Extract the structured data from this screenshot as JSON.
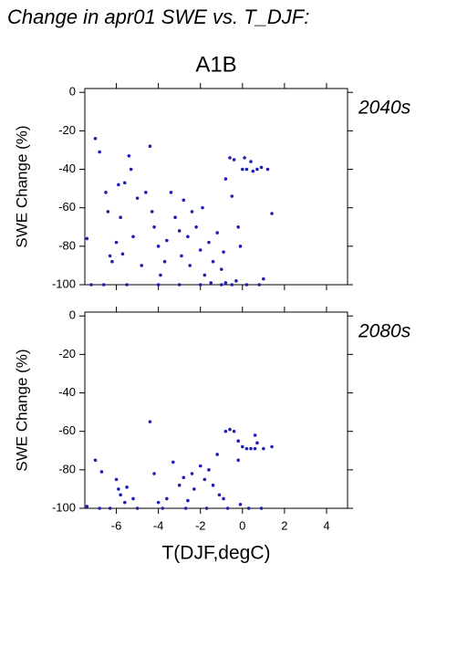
{
  "title": "Change in apr01 SWE vs. T_DJF:",
  "subtitle": "A1B",
  "chart_data": [
    {
      "type": "scatter",
      "annotation": "2040s",
      "ylabel": "SWE Change (%)",
      "color": "#1f1fb4",
      "xlim": [
        -7.5,
        5
      ],
      "ylim": [
        -100,
        2
      ],
      "xticks": [
        -6,
        -4,
        -2,
        0,
        2,
        4
      ],
      "yticks": [
        -100,
        -80,
        -60,
        -40,
        -20,
        0
      ],
      "x": [
        -7.4,
        -7.0,
        -6.8,
        -6.5,
        -6.4,
        -6.3,
        -6.2,
        -6.0,
        -5.9,
        -5.8,
        -5.7,
        -5.6,
        -5.4,
        -5.3,
        -5.2,
        -5.0,
        -4.8,
        -4.6,
        -4.4,
        -4.3,
        -4.2,
        -4.0,
        -3.9,
        -3.7,
        -3.6,
        -3.4,
        -3.2,
        -3.0,
        -2.9,
        -2.8,
        -2.6,
        -2.5,
        -2.4,
        -2.2,
        -2.0,
        -1.9,
        -1.8,
        -1.6,
        -1.4,
        -1.2,
        -1.0,
        -0.9,
        -0.8,
        -0.6,
        -0.5,
        -0.4,
        -0.3,
        -0.2,
        -0.1,
        0.0,
        0.1,
        0.2,
        0.4,
        0.5,
        0.7,
        0.9,
        1.2,
        1.4,
        1.0,
        -6.6,
        -5.5,
        -4.0,
        -3.0,
        -2.0,
        -1.0,
        -0.5,
        0.2,
        0.8,
        -7.2,
        -1.5,
        -0.8
      ],
      "values": [
        -76,
        -24,
        -31,
        -52,
        -62,
        -85,
        -88,
        -78,
        -48,
        -65,
        -84,
        -47,
        -33,
        -40,
        -75,
        -55,
        -90,
        -52,
        -28,
        -62,
        -70,
        -80,
        -95,
        -88,
        -77,
        -52,
        -65,
        -72,
        -85,
        -56,
        -75,
        -90,
        -62,
        -70,
        -82,
        -60,
        -95,
        -78,
        -88,
        -73,
        -92,
        -83,
        -45,
        -34,
        -54,
        -35,
        -98,
        -70,
        -80,
        -40,
        -34,
        -40,
        -36,
        -41,
        -40,
        -39,
        -40,
        -63,
        -97,
        -100,
        -100,
        -100,
        -100,
        -100,
        -100,
        -100,
        -100,
        -100,
        -100,
        -99,
        -99
      ]
    },
    {
      "type": "scatter",
      "annotation": "2080s",
      "ylabel": "SWE Change (%)",
      "xlabel": "T(DJF,degC)",
      "color": "#1f1fb4",
      "xlim": [
        -7.5,
        5
      ],
      "ylim": [
        -100,
        2
      ],
      "xticks": [
        -6,
        -4,
        -2,
        0,
        2,
        4
      ],
      "yticks": [
        -100,
        -80,
        -60,
        -40,
        -20,
        0
      ],
      "x": [
        -7.4,
        -7.0,
        -6.7,
        -6.3,
        -6.0,
        -5.9,
        -5.8,
        -5.6,
        -5.5,
        -5.2,
        -4.4,
        -4.2,
        -4.0,
        -3.6,
        -3.3,
        -3.0,
        -2.8,
        -2.6,
        -2.4,
        -2.3,
        -2.0,
        -1.8,
        -1.6,
        -1.4,
        -1.2,
        -1.1,
        -0.9,
        -0.8,
        -0.6,
        -0.4,
        -0.2,
        0.0,
        0.2,
        0.4,
        0.6,
        0.7,
        1.0,
        1.4,
        0.6,
        -0.2,
        -6.8,
        -5.0,
        -3.8,
        -2.7,
        -1.7,
        -0.7,
        0.3,
        0.9,
        -0.1
      ],
      "values": [
        -99,
        -75,
        -81,
        -100,
        -85,
        -90,
        -93,
        -97,
        -89,
        -95,
        -55,
        -82,
        -97,
        -95,
        -76,
        -88,
        -84,
        -96,
        -82,
        -90,
        -78,
        -85,
        -80,
        -88,
        -72,
        -93,
        -95,
        -60,
        -59,
        -60,
        -75,
        -68,
        -69,
        -69,
        -69,
        -66,
        -69,
        -68,
        -62,
        -65,
        -100,
        -100,
        -100,
        -100,
        -100,
        -100,
        -100,
        -100,
        -98
      ]
    }
  ]
}
